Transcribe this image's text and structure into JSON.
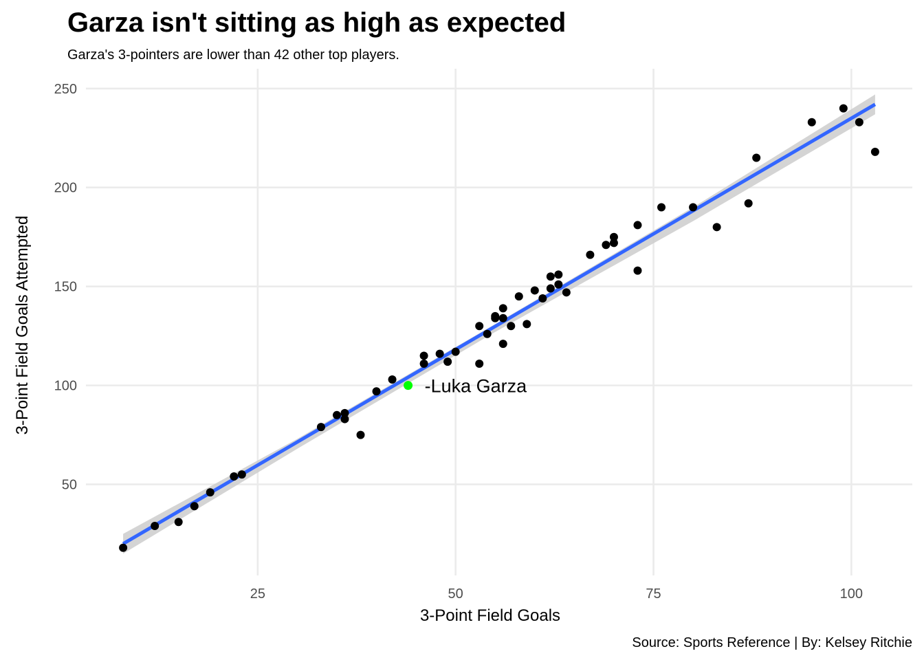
{
  "chart_data": {
    "type": "scatter",
    "title": "Garza isn't sitting as high as expected",
    "subtitle": "Garza's 3-pointers are lower than 42 other top players.",
    "xlabel": "3-Point Field Goals",
    "ylabel": "3-Point Field Goals Attempted",
    "caption": "Source: Sports Reference | By: Kelsey Ritchie",
    "xlim": [
      3.3,
      107.7
    ],
    "ylim": [
      4,
      260
    ],
    "x_ticks": [
      25,
      50,
      75,
      100
    ],
    "y_ticks": [
      50,
      100,
      150,
      200,
      250
    ],
    "grid": true,
    "point_color": "#000000",
    "highlight_color": "#00ff00",
    "trend_color": "#3366ff",
    "band_color": "#cccccc",
    "points": [
      {
        "x": 8,
        "y": 18
      },
      {
        "x": 12,
        "y": 29
      },
      {
        "x": 15,
        "y": 31
      },
      {
        "x": 17,
        "y": 39
      },
      {
        "x": 19,
        "y": 46
      },
      {
        "x": 22,
        "y": 54
      },
      {
        "x": 23,
        "y": 55
      },
      {
        "x": 33,
        "y": 79
      },
      {
        "x": 35,
        "y": 85
      },
      {
        "x": 36,
        "y": 86
      },
      {
        "x": 36,
        "y": 83
      },
      {
        "x": 38,
        "y": 75
      },
      {
        "x": 40,
        "y": 97
      },
      {
        "x": 42,
        "y": 103
      },
      {
        "x": 46,
        "y": 115
      },
      {
        "x": 46,
        "y": 111
      },
      {
        "x": 48,
        "y": 116
      },
      {
        "x": 49,
        "y": 112
      },
      {
        "x": 50,
        "y": 117
      },
      {
        "x": 53,
        "y": 130
      },
      {
        "x": 53,
        "y": 111
      },
      {
        "x": 54,
        "y": 126
      },
      {
        "x": 55,
        "y": 135
      },
      {
        "x": 55,
        "y": 134
      },
      {
        "x": 56,
        "y": 139
      },
      {
        "x": 56,
        "y": 134
      },
      {
        "x": 56,
        "y": 121
      },
      {
        "x": 57,
        "y": 130
      },
      {
        "x": 58,
        "y": 145
      },
      {
        "x": 59,
        "y": 131
      },
      {
        "x": 60,
        "y": 148
      },
      {
        "x": 61,
        "y": 144
      },
      {
        "x": 62,
        "y": 155
      },
      {
        "x": 62,
        "y": 149
      },
      {
        "x": 63,
        "y": 156
      },
      {
        "x": 63,
        "y": 151
      },
      {
        "x": 64,
        "y": 147
      },
      {
        "x": 67,
        "y": 166
      },
      {
        "x": 69,
        "y": 171
      },
      {
        "x": 70,
        "y": 175
      },
      {
        "x": 70,
        "y": 172
      },
      {
        "x": 73,
        "y": 181
      },
      {
        "x": 73,
        "y": 158
      },
      {
        "x": 76,
        "y": 190
      },
      {
        "x": 80,
        "y": 190
      },
      {
        "x": 83,
        "y": 180
      },
      {
        "x": 87,
        "y": 192
      },
      {
        "x": 88,
        "y": 215
      },
      {
        "x": 95,
        "y": 233
      },
      {
        "x": 99,
        "y": 240
      },
      {
        "x": 101,
        "y": 233
      },
      {
        "x": 103,
        "y": 218
      }
    ],
    "highlight": {
      "x": 44,
      "y": 100,
      "label": "-Luka Garza"
    },
    "trend": {
      "x": [
        8,
        103
      ],
      "y": [
        20,
        242
      ]
    },
    "band": {
      "x": [
        8,
        30,
        55,
        80,
        103
      ],
      "upper": [
        25,
        73,
        131,
        190,
        247
      ],
      "lower": [
        15,
        68,
        127,
        183,
        237
      ]
    }
  }
}
